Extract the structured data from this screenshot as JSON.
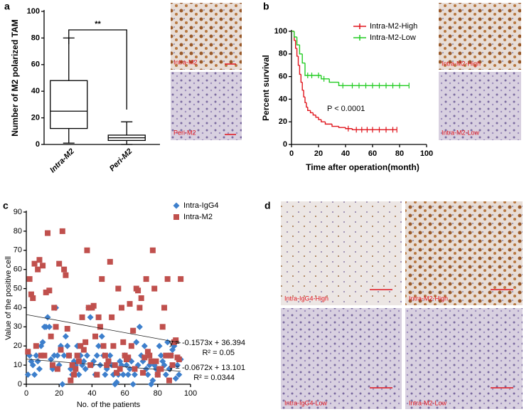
{
  "panel_labels": [
    "a",
    "b",
    "c",
    "d"
  ],
  "micrographs": [
    {
      "label": "Intra-M2"
    },
    {
      "label": "Peri-M2"
    },
    {
      "label": "Intra-M2-High"
    },
    {
      "label": "Intra-M2-Low"
    },
    {
      "label": "Intra-IgG4-High"
    },
    {
      "label": "Intra-M2-High"
    },
    {
      "label": "Intra-IgG4-Low"
    },
    {
      "label": "Intra-M2-Low"
    }
  ],
  "chart_data": [
    {
      "type": "box",
      "ylabel": "Number of M2 polarized TAM",
      "categories": [
        "Intra-M2",
        "Peri-M2"
      ],
      "boxes": [
        {
          "min": 1,
          "q1": 12,
          "median": 25,
          "q3": 48,
          "max": 80
        },
        {
          "min": 0,
          "q1": 3,
          "median": 5,
          "q3": 7,
          "max": 17
        }
      ],
      "significance": "**",
      "ylim": [
        0,
        100
      ],
      "yticks": [
        0,
        20,
        40,
        60,
        80,
        100
      ]
    },
    {
      "type": "step",
      "xlabel": "Time after operation(month)",
      "ylabel": "Percent survival",
      "annotation": "P < 0.0001",
      "xlim": [
        0,
        100
      ],
      "xticks": [
        0,
        20,
        40,
        60,
        80,
        100
      ],
      "ylim": [
        0,
        100
      ],
      "yticks": [
        0,
        20,
        40,
        60,
        80,
        100
      ],
      "series": [
        {
          "name": "Intra-M2-High",
          "color": "#e0141c",
          "x": [
            0,
            2,
            3,
            4,
            5,
            6,
            7,
            8,
            9,
            10,
            11,
            12,
            14,
            16,
            18,
            20,
            22,
            25,
            30,
            35,
            40,
            45
          ],
          "values": [
            100,
            92,
            85,
            78,
            70,
            62,
            55,
            48,
            42,
            37,
            33,
            30,
            28,
            26,
            24,
            22,
            20,
            18,
            16,
            15,
            14,
            13
          ],
          "censored": [
            42,
            48,
            52,
            56,
            60,
            65,
            70,
            75,
            78
          ]
        },
        {
          "name": "Intra-M2-Low",
          "color": "#22cc22",
          "x": [
            0,
            2,
            4,
            6,
            8,
            10,
            22,
            28,
            35
          ],
          "values": [
            100,
            95,
            88,
            80,
            72,
            61,
            58,
            55,
            52
          ],
          "censored": [
            12,
            15,
            20,
            24,
            38,
            45,
            50,
            55,
            60,
            65,
            70,
            75,
            80,
            87
          ]
        }
      ]
    },
    {
      "type": "scatter",
      "xlabel": "No. of the patients",
      "ylabel": "Value of the positive cell",
      "xlim": [
        0,
        100
      ],
      "xticks": [
        0,
        20,
        40,
        60,
        80,
        100
      ],
      "ylim": [
        0,
        90
      ],
      "yticks": [
        0,
        10,
        20,
        30,
        40,
        50,
        60,
        70,
        80,
        90
      ],
      "x": [
        1,
        2,
        3,
        4,
        5,
        6,
        7,
        8,
        9,
        10,
        11,
        12,
        13,
        14,
        15,
        16,
        17,
        18,
        19,
        20,
        21,
        22,
        23,
        24,
        25,
        26,
        27,
        28,
        29,
        30,
        31,
        32,
        33,
        34,
        35,
        36,
        37,
        38,
        39,
        40,
        41,
        42,
        43,
        44,
        45,
        46,
        47,
        48,
        49,
        50,
        51,
        52,
        53,
        54,
        55,
        56,
        57,
        58,
        59,
        60,
        61,
        62,
        63,
        64,
        65,
        66,
        67,
        68,
        69,
        70,
        71,
        72,
        73,
        74,
        75,
        76,
        77,
        78,
        79,
        80,
        81,
        82,
        83,
        84,
        85,
        86,
        87,
        88,
        89,
        90,
        91,
        92,
        93,
        94
      ],
      "series": [
        {
          "name": "Intra-IgG4",
          "color": "#3d7fcc",
          "marker": "diamond",
          "values": [
            5,
            15,
            12,
            10,
            5,
            15,
            12,
            8,
            20,
            22,
            30,
            30,
            35,
            30,
            13,
            8,
            15,
            40,
            15,
            10,
            20,
            0,
            15,
            25,
            20,
            15,
            8,
            5,
            12,
            10,
            20,
            5,
            15,
            10,
            12,
            8,
            15,
            40,
            35,
            10,
            12,
            5,
            15,
            20,
            10,
            25,
            15,
            5,
            8,
            12,
            15,
            10,
            5,
            0,
            1,
            5,
            12,
            10,
            5,
            15,
            10,
            5,
            8,
            12,
            0,
            5,
            22,
            10,
            30,
            15,
            12,
            20,
            8,
            5,
            10,
            0,
            2,
            10,
            8,
            5,
            20,
            15,
            12,
            10,
            5,
            22,
            8,
            15,
            18,
            20,
            3,
            10,
            5,
            13
          ],
          "trend": {
            "slope": -0.0672,
            "intercept": 13.101,
            "equation": "y = -0.0672x + 13.101",
            "r2": "R² = 0.0344"
          }
        },
        {
          "name": "Intra-M2",
          "color": "#c0504d",
          "marker": "square",
          "values": [
            17,
            55,
            47,
            45,
            63,
            20,
            60,
            65,
            15,
            62,
            15,
            48,
            79,
            49,
            25,
            10,
            40,
            30,
            8,
            63,
            18,
            80,
            60,
            57,
            29,
            15,
            2,
            10,
            5,
            8,
            15,
            12,
            20,
            35,
            18,
            22,
            70,
            40,
            10,
            40,
            41,
            25,
            5,
            35,
            30,
            55,
            20,
            15,
            10,
            12,
            64,
            35,
            20,
            10,
            6,
            50,
            8,
            40,
            22,
            15,
            13,
            14,
            42,
            20,
            28,
            8,
            50,
            49,
            40,
            45,
            6,
            14,
            55,
            17,
            15,
            12,
            70,
            50,
            12,
            5,
            8,
            8,
            30,
            40,
            15,
            55,
            2,
            15,
            10,
            22,
            23,
            14,
            13,
            55
          ],
          "trend": {
            "slope": -0.1573,
            "intercept": 36.394,
            "equation": "y = -0.1573x + 36.394",
            "r2": "R² = 0.05"
          }
        }
      ]
    }
  ]
}
